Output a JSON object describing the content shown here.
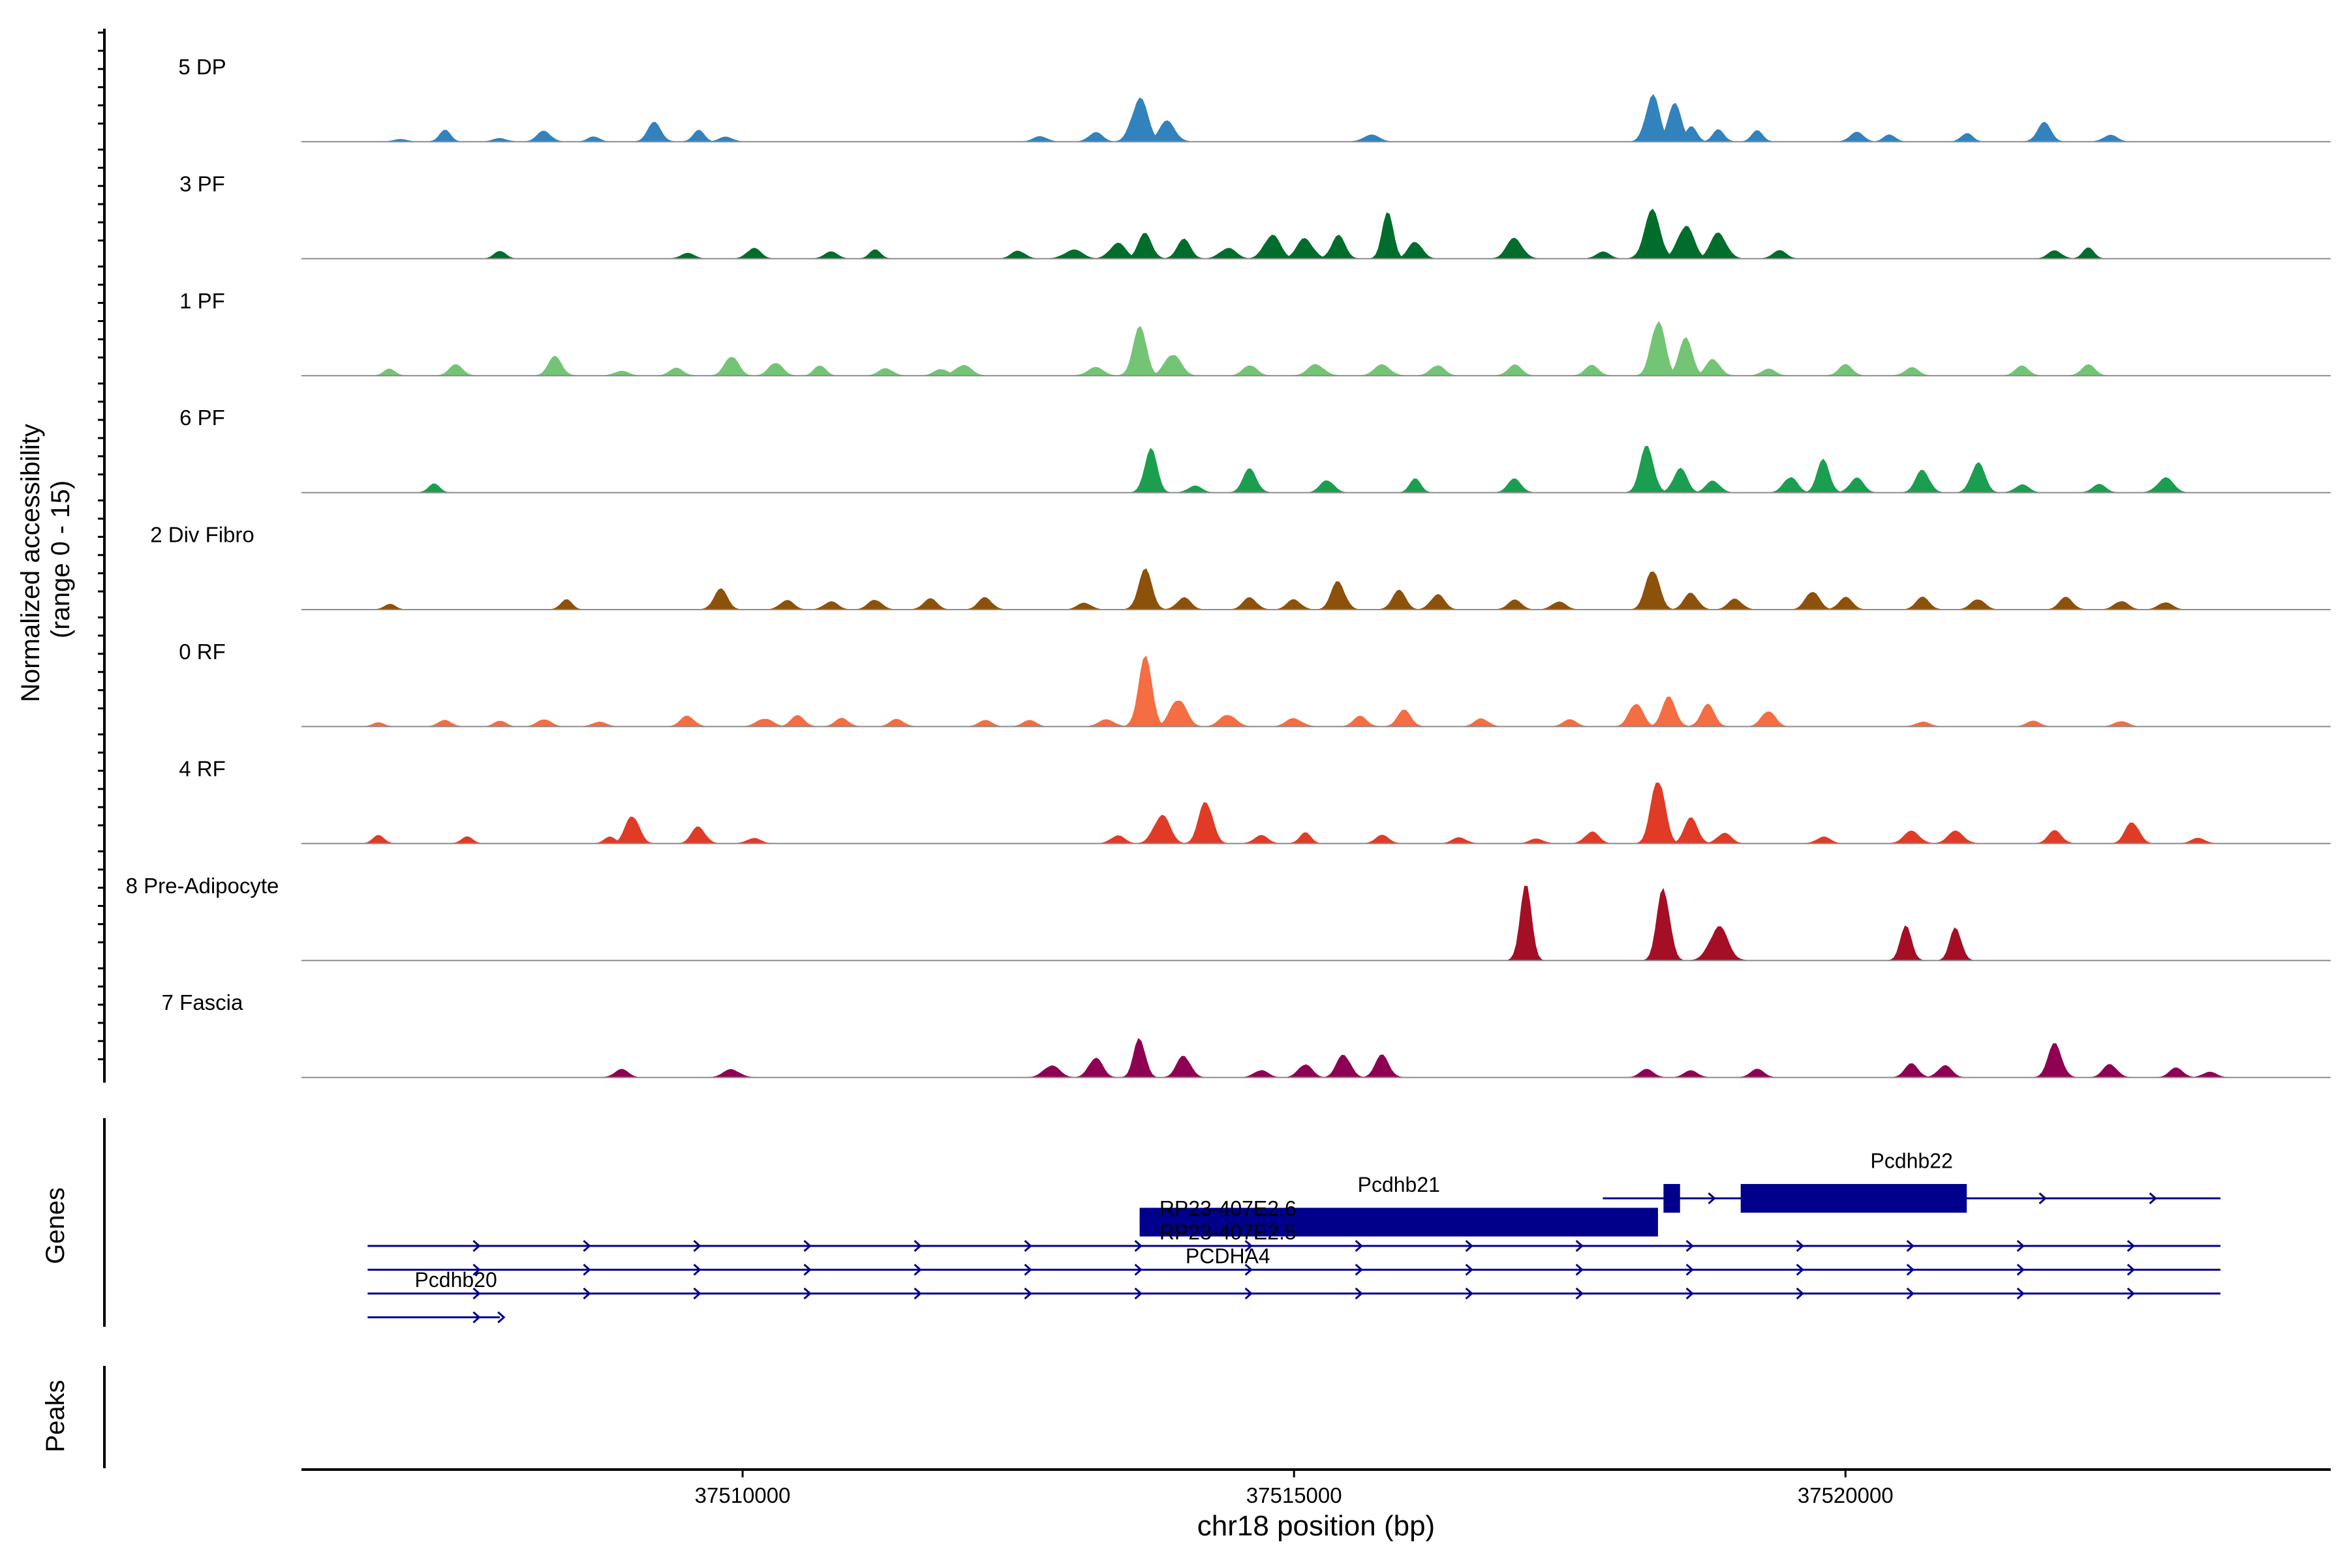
{
  "chart_data": {
    "type": "area",
    "title": "",
    "xlabel": "chr18 position (bp)",
    "ylabel": "Normalized accessibility\n(range 0 - 15)",
    "ylabel_lines": [
      "Normalized accessibility",
      "(range 0 - 15)"
    ],
    "ylim": [
      0,
      15
    ],
    "xlim": [
      37506000,
      37524400
    ],
    "x_ticks": [
      37510000,
      37515000,
      37520000
    ],
    "x_tick_labels": [
      "37510000",
      "37515000",
      "37520000"
    ],
    "grid": false,
    "series": [
      {
        "name": "5 DP",
        "color": "#3182BD",
        "peaks": [
          [
            37506900,
            0.35,
            60
          ],
          [
            37507300,
            1.7,
            50
          ],
          [
            37507800,
            0.5,
            60
          ],
          [
            37508200,
            1.6,
            60
          ],
          [
            37508650,
            0.8,
            50
          ],
          [
            37509200,
            2.8,
            60
          ],
          [
            37509600,
            1.7,
            50
          ],
          [
            37509850,
            0.7,
            60
          ],
          [
            37512700,
            0.8,
            60
          ],
          [
            37513200,
            1.4,
            60
          ],
          [
            37513600,
            6.5,
            70
          ],
          [
            37513850,
            3.0,
            70
          ],
          [
            37515700,
            1.0,
            70
          ],
          [
            37518250,
            7.0,
            60
          ],
          [
            37518450,
            5.5,
            60
          ],
          [
            37518600,
            2.2,
            50
          ],
          [
            37518850,
            1.8,
            50
          ],
          [
            37519200,
            1.6,
            50
          ],
          [
            37520100,
            1.4,
            60
          ],
          [
            37520400,
            1.1,
            50
          ],
          [
            37521100,
            1.3,
            50
          ],
          [
            37521800,
            2.8,
            60
          ],
          [
            37522400,
            1.0,
            60
          ]
        ]
      },
      {
        "name": "3 PF",
        "color": "#006D2C",
        "peaks": [
          [
            37507800,
            1.2,
            50
          ],
          [
            37509500,
            0.8,
            60
          ],
          [
            37510100,
            1.6,
            60
          ],
          [
            37510800,
            1.0,
            60
          ],
          [
            37511200,
            1.3,
            50
          ],
          [
            37512500,
            1.2,
            60
          ],
          [
            37513000,
            1.3,
            80
          ],
          [
            37513400,
            2.3,
            70
          ],
          [
            37513650,
            3.7,
            60
          ],
          [
            37514000,
            2.8,
            60
          ],
          [
            37514400,
            1.6,
            70
          ],
          [
            37514800,
            3.6,
            70
          ],
          [
            37515100,
            3.0,
            70
          ],
          [
            37515400,
            3.4,
            60
          ],
          [
            37515850,
            6.6,
            50
          ],
          [
            37516100,
            2.6,
            60
          ],
          [
            37517000,
            3.0,
            70
          ],
          [
            37517800,
            1.0,
            60
          ],
          [
            37518250,
            7.0,
            70
          ],
          [
            37518550,
            5.0,
            70
          ],
          [
            37518850,
            3.8,
            70
          ],
          [
            37519400,
            1.2,
            60
          ],
          [
            37521900,
            1.2,
            60
          ],
          [
            37522200,
            1.6,
            50
          ]
        ]
      },
      {
        "name": "1 PF",
        "color": "#74C476",
        "peaks": [
          [
            37506800,
            1.0,
            50
          ],
          [
            37507400,
            1.6,
            60
          ],
          [
            37508300,
            2.8,
            60
          ],
          [
            37508900,
            0.7,
            60
          ],
          [
            37509400,
            1.1,
            60
          ],
          [
            37509900,
            3.0,
            60
          ],
          [
            37510300,
            2.0,
            60
          ],
          [
            37510700,
            1.6,
            50
          ],
          [
            37511300,
            1.1,
            60
          ],
          [
            37511800,
            1.0,
            60
          ],
          [
            37512000,
            1.6,
            70
          ],
          [
            37513200,
            1.2,
            70
          ],
          [
            37513600,
            7.0,
            60
          ],
          [
            37513900,
            3.3,
            70
          ],
          [
            37514600,
            1.6,
            60
          ],
          [
            37515200,
            1.7,
            70
          ],
          [
            37515800,
            1.6,
            70
          ],
          [
            37516300,
            1.6,
            60
          ],
          [
            37517000,
            1.6,
            60
          ],
          [
            37517700,
            1.5,
            60
          ],
          [
            37518300,
            8.5,
            60
          ],
          [
            37518550,
            5.4,
            60
          ],
          [
            37518800,
            2.5,
            60
          ],
          [
            37519300,
            1.0,
            60
          ],
          [
            37520000,
            1.6,
            60
          ],
          [
            37520600,
            1.2,
            60
          ],
          [
            37521600,
            1.4,
            60
          ],
          [
            37522200,
            1.6,
            60
          ]
        ]
      },
      {
        "name": "6 PF",
        "color": "#1B9E50",
        "peaks": [
          [
            37507200,
            1.3,
            50
          ],
          [
            37513700,
            6.5,
            55
          ],
          [
            37514100,
            1.0,
            60
          ],
          [
            37514600,
            3.5,
            60
          ],
          [
            37515300,
            1.9,
            60
          ],
          [
            37516100,
            2.0,
            50
          ],
          [
            37517000,
            2.0,
            60
          ],
          [
            37518200,
            6.8,
            60
          ],
          [
            37518500,
            3.6,
            60
          ],
          [
            37518800,
            1.8,
            60
          ],
          [
            37519500,
            2.4,
            60
          ],
          [
            37519800,
            4.8,
            55
          ],
          [
            37520100,
            2.2,
            60
          ],
          [
            37520700,
            3.4,
            60
          ],
          [
            37521200,
            4.5,
            60
          ],
          [
            37521600,
            1.2,
            60
          ],
          [
            37522300,
            1.2,
            60
          ],
          [
            37522900,
            2.2,
            70
          ]
        ]
      },
      {
        "name": "2 Div Fibro",
        "color": "#8C510A",
        "peaks": [
          [
            37506800,
            0.8,
            50
          ],
          [
            37508400,
            1.5,
            50
          ],
          [
            37509800,
            3.0,
            60
          ],
          [
            37510400,
            1.4,
            60
          ],
          [
            37510800,
            1.2,
            60
          ],
          [
            37511200,
            1.5,
            60
          ],
          [
            37511700,
            1.6,
            60
          ],
          [
            37512200,
            1.8,
            60
          ],
          [
            37513100,
            1.0,
            60
          ],
          [
            37513650,
            5.8,
            60
          ],
          [
            37514000,
            1.8,
            60
          ],
          [
            37514600,
            1.8,
            60
          ],
          [
            37515000,
            1.5,
            60
          ],
          [
            37515400,
            4.2,
            60
          ],
          [
            37515950,
            2.8,
            60
          ],
          [
            37516300,
            2.3,
            60
          ],
          [
            37517000,
            1.4,
            60
          ],
          [
            37517400,
            1.2,
            60
          ],
          [
            37518250,
            6.2,
            60
          ],
          [
            37518600,
            2.5,
            60
          ],
          [
            37519000,
            1.6,
            60
          ],
          [
            37519700,
            2.8,
            60
          ],
          [
            37520000,
            1.8,
            60
          ],
          [
            37520700,
            1.8,
            60
          ],
          [
            37521200,
            1.6,
            60
          ],
          [
            37522000,
            1.8,
            60
          ],
          [
            37522500,
            1.3,
            60
          ],
          [
            37522900,
            1.1,
            60
          ]
        ]
      },
      {
        "name": "0 RF",
        "color": "#F46D43",
        "peaks": [
          [
            37506700,
            0.6,
            50
          ],
          [
            37507300,
            0.9,
            60
          ],
          [
            37507800,
            0.9,
            50
          ],
          [
            37508200,
            1.1,
            60
          ],
          [
            37508700,
            0.7,
            60
          ],
          [
            37509500,
            1.6,
            60
          ],
          [
            37510200,
            1.2,
            70
          ],
          [
            37510500,
            1.6,
            60
          ],
          [
            37510900,
            1.2,
            60
          ],
          [
            37511400,
            1.1,
            60
          ],
          [
            37512200,
            0.9,
            60
          ],
          [
            37512600,
            0.9,
            60
          ],
          [
            37513300,
            1.0,
            70
          ],
          [
            37513650,
            10.0,
            60
          ],
          [
            37513950,
            4.2,
            70
          ],
          [
            37514400,
            1.8,
            70
          ],
          [
            37515000,
            1.2,
            70
          ],
          [
            37515600,
            1.5,
            60
          ],
          [
            37516000,
            2.4,
            60
          ],
          [
            37516700,
            1.2,
            60
          ],
          [
            37517500,
            1.0,
            60
          ],
          [
            37518100,
            3.6,
            60
          ],
          [
            37518400,
            4.3,
            60
          ],
          [
            37518750,
            3.2,
            60
          ],
          [
            37519300,
            2.4,
            60
          ],
          [
            37520700,
            0.7,
            60
          ],
          [
            37521700,
            0.8,
            60
          ],
          [
            37522500,
            0.8,
            60
          ]
        ]
      },
      {
        "name": "4 RF",
        "color": "#E03B27",
        "peaks": [
          [
            37506700,
            1.2,
            50
          ],
          [
            37507500,
            1.0,
            50
          ],
          [
            37508800,
            1.0,
            50
          ],
          [
            37509000,
            4.3,
            60
          ],
          [
            37509600,
            2.5,
            60
          ],
          [
            37510100,
            0.8,
            60
          ],
          [
            37513400,
            1.2,
            60
          ],
          [
            37513800,
            4.3,
            70
          ],
          [
            37514200,
            6.5,
            60
          ],
          [
            37514700,
            1.2,
            60
          ],
          [
            37515100,
            1.6,
            50
          ],
          [
            37515800,
            1.2,
            60
          ],
          [
            37516500,
            0.9,
            60
          ],
          [
            37517200,
            0.7,
            60
          ],
          [
            37517700,
            1.8,
            60
          ],
          [
            37518300,
            10.0,
            60
          ],
          [
            37518600,
            3.7,
            60
          ],
          [
            37518900,
            1.6,
            60
          ],
          [
            37519800,
            1.0,
            60
          ],
          [
            37520600,
            1.8,
            70
          ],
          [
            37521000,
            1.8,
            70
          ],
          [
            37521900,
            1.9,
            60
          ],
          [
            37522600,
            3.3,
            60
          ],
          [
            37523200,
            0.8,
            60
          ]
        ]
      },
      {
        "name": "8 Pre-Adipocyte",
        "color": "#A50F26",
        "peaks": [
          [
            37517100,
            11.0,
            50
          ],
          [
            37518350,
            11.0,
            55
          ],
          [
            37518850,
            5.0,
            80
          ],
          [
            37520550,
            5.0,
            50
          ],
          [
            37521000,
            5.0,
            50
          ]
        ]
      },
      {
        "name": "7 Fascia",
        "color": "#8E0152",
        "peaks": [
          [
            37508900,
            1.2,
            60
          ],
          [
            37509900,
            1.2,
            70
          ],
          [
            37512800,
            1.8,
            70
          ],
          [
            37513200,
            3.0,
            60
          ],
          [
            37513600,
            6.0,
            50
          ],
          [
            37514000,
            3.3,
            60
          ],
          [
            37514700,
            1.1,
            60
          ],
          [
            37515100,
            2.0,
            60
          ],
          [
            37515450,
            3.5,
            60
          ],
          [
            37515800,
            3.3,
            60
          ],
          [
            37518200,
            1.2,
            60
          ],
          [
            37518600,
            1.0,
            60
          ],
          [
            37519200,
            1.2,
            60
          ],
          [
            37520600,
            2.0,
            60
          ],
          [
            37520900,
            1.8,
            60
          ],
          [
            37521900,
            5.0,
            60
          ],
          [
            37522400,
            2.0,
            60
          ],
          [
            37523000,
            1.4,
            60
          ],
          [
            37523300,
            0.8,
            60
          ]
        ]
      }
    ],
    "genes": {
      "title": "Genes",
      "labels": [
        {
          "text": "Pcdhb21",
          "x": 37515950,
          "row": 0
        },
        {
          "text": "Pcdhb22",
          "x": 37520600,
          "row": -1
        },
        {
          "text": "RP23-407E2.6",
          "x": 37514400,
          "row": 1
        },
        {
          "text": "RP23-407E2.5",
          "x": 37514400,
          "row": 2
        },
        {
          "text": "PCDHA4",
          "x": 37514400,
          "row": 3
        },
        {
          "text": "Pcdhb20",
          "x": 37507400,
          "row": 4
        }
      ],
      "features": [
        {
          "start": 37517800,
          "end": 37523400,
          "row": 0,
          "strand": "+",
          "exons": [
            [
              37518350,
              37518500
            ],
            [
              37519050,
              37521100
            ]
          ]
        },
        {
          "start": 37513600,
          "end": 37518300,
          "row": 1,
          "strand": "+",
          "exons": [
            [
              37513600,
              37518300
            ]
          ]
        },
        {
          "start": 37506600,
          "end": 37523400,
          "row": 2,
          "strand": "+",
          "exons": []
        },
        {
          "start": 37506600,
          "end": 37523400,
          "row": 3,
          "strand": "+",
          "exons": []
        },
        {
          "start": 37506600,
          "end": 37523400,
          "row": 4,
          "strand": "+",
          "exons": []
        },
        {
          "start": 37506600,
          "end": 37507800,
          "row": 5,
          "strand": "+",
          "exons": []
        }
      ]
    },
    "peaks_track": {
      "title": "Peaks",
      "ranges": []
    }
  }
}
